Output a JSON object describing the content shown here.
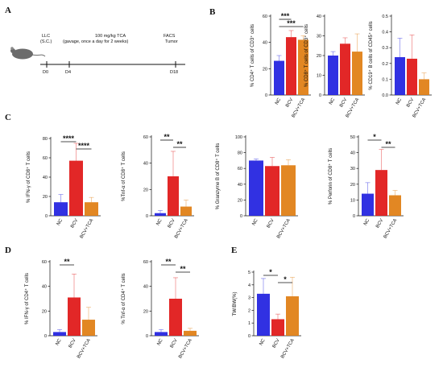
{
  "panels": {
    "A": "A",
    "B": "B",
    "C": "C",
    "D": "D",
    "E": "E"
  },
  "timeline": {
    "inject_label": "LLC",
    "inject_sub": "(S.C.)",
    "treatment": "100 mg/kg TCA",
    "gavage": "(gavage, once a day for 2 weeks)",
    "endpoint": "FACS",
    "endpoint_sub": "Tumor",
    "days": [
      "D0",
      "D4",
      "D18"
    ]
  },
  "colors": {
    "NC": "#1f1fe0",
    "BCV": "#e01515",
    "BCV+TCA": "#e07d10"
  },
  "chart_data": [
    {
      "id": "B1",
      "type": "bar",
      "categories": [
        "NC",
        "BCV",
        "BCV+TCA"
      ],
      "values": [
        26,
        44,
        42
      ],
      "errors": [
        4,
        5,
        3
      ],
      "ylabel": "% CD4⁺ T cells of CD3⁺ cells",
      "ylim": [
        0,
        60
      ],
      "ticks": [
        "0",
        "20",
        "40",
        "60"
      ],
      "significance": [
        {
          "from": 0,
          "to": 1,
          "label": "***"
        },
        {
          "from": 0,
          "to": 2,
          "label": "***"
        }
      ]
    },
    {
      "id": "B2",
      "type": "bar",
      "categories": [
        "NC",
        "BCV",
        "BCV+TCA"
      ],
      "values": [
        20,
        26,
        22
      ],
      "errors": [
        2,
        3,
        9
      ],
      "ylabel": "% CD8⁺ T cells of CD3⁺ cells",
      "ylim": [
        0,
        40
      ],
      "ticks": [
        "0",
        "10",
        "20",
        "30",
        "40"
      ],
      "significance": []
    },
    {
      "id": "B3",
      "type": "bar",
      "categories": [
        "NC",
        "BCV",
        "BCV+TCA"
      ],
      "values": [
        0.24,
        0.23,
        0.1
      ],
      "errors": [
        0.12,
        0.15,
        0.04
      ],
      "ylabel": "% CD19⁺ B cells of CD45⁺ cells",
      "ylim": [
        0,
        0.5
      ],
      "ticks": [
        "0.0",
        "0.1",
        "0.2",
        "0.3",
        "0.4",
        "0.5"
      ],
      "significance": []
    },
    {
      "id": "C1",
      "type": "bar",
      "categories": [
        "NC",
        "BCV",
        "BCV+TCA"
      ],
      "values": [
        14,
        57,
        14
      ],
      "errors": [
        8,
        18,
        5
      ],
      "ylabel": "% IFN-γ of CD8⁺ T cells",
      "ylim": [
        0,
        80
      ],
      "ticks": [
        "0",
        "20",
        "40",
        "60",
        "80"
      ],
      "significance": [
        {
          "from": 0,
          "to": 1,
          "label": "****"
        },
        {
          "from": 1,
          "to": 2,
          "label": "****"
        }
      ]
    },
    {
      "id": "C2",
      "type": "bar",
      "categories": [
        "NC",
        "BCV",
        "BCV+TCA"
      ],
      "values": [
        2,
        30,
        7
      ],
      "errors": [
        2,
        19,
        5
      ],
      "ylabel": "%Tnf-α of CD8⁺ T cells",
      "ylim": [
        0,
        60
      ],
      "ticks": [
        "0",
        "20",
        "40",
        "60"
      ],
      "significance": [
        {
          "from": 0,
          "to": 1,
          "label": "**"
        },
        {
          "from": 1,
          "to": 2,
          "label": "**"
        }
      ]
    },
    {
      "id": "C3",
      "type": "bar",
      "categories": [
        "NC",
        "BCV",
        "BCV+TCA"
      ],
      "values": [
        70,
        63,
        64
      ],
      "errors": [
        2,
        11,
        7
      ],
      "ylabel": "% Granzyme B of CD8⁺ T cells",
      "ylim": [
        0,
        100
      ],
      "ticks": [
        "0",
        "20",
        "40",
        "60",
        "80",
        "100"
      ],
      "significance": []
    },
    {
      "id": "C4",
      "type": "bar",
      "categories": [
        "NC",
        "BCV",
        "BCV+TCA"
      ],
      "values": [
        14,
        29,
        13
      ],
      "errors": [
        7,
        13,
        3
      ],
      "ylabel": "% Perforin of CD8⁺ T cells",
      "ylim": [
        0,
        50
      ],
      "ticks": [
        "0",
        "10",
        "20",
        "30",
        "40",
        "50"
      ],
      "significance": [
        {
          "from": 0,
          "to": 1,
          "label": "*"
        },
        {
          "from": 1,
          "to": 2,
          "label": "**"
        }
      ]
    },
    {
      "id": "D1",
      "type": "bar",
      "categories": [
        "NC",
        "BCV",
        "BCV+TCA"
      ],
      "values": [
        3,
        31,
        13
      ],
      "errors": [
        2,
        19,
        10
      ],
      "ylabel": "% IFN-γ of CD4⁺ T cells",
      "ylim": [
        0,
        60
      ],
      "ticks": [
        "0",
        "20",
        "40",
        "60"
      ],
      "significance": [
        {
          "from": 0,
          "to": 1,
          "label": "**"
        }
      ]
    },
    {
      "id": "D2",
      "type": "bar",
      "categories": [
        "NC",
        "BCV",
        "BCV+TCA"
      ],
      "values": [
        3,
        30,
        4
      ],
      "errors": [
        2,
        17,
        2
      ],
      "ylabel": "% Tnf-α of CD4⁺ T cells",
      "ylim": [
        0,
        60
      ],
      "ticks": [
        "0",
        "20",
        "40",
        "60"
      ],
      "significance": [
        {
          "from": 0,
          "to": 1,
          "label": "**"
        },
        {
          "from": 1,
          "to": 2,
          "label": "**"
        }
      ]
    },
    {
      "id": "E1",
      "type": "bar",
      "categories": [
        "NC",
        "BCV",
        "BCV+TCA"
      ],
      "values": [
        3.3,
        1.3,
        3.1
      ],
      "errors": [
        1.2,
        0.4,
        1.5
      ],
      "ylabel": "TW/BW(%)",
      "ylim": [
        0,
        5
      ],
      "ticks": [
        "0",
        "1",
        "2",
        "3",
        "4",
        "5"
      ],
      "significance": [
        {
          "from": 0,
          "to": 1,
          "label": "*"
        },
        {
          "from": 1,
          "to": 2,
          "label": "*"
        }
      ]
    }
  ]
}
